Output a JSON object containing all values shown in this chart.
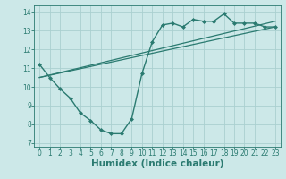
{
  "xlabel": "Humidex (Indice chaleur)",
  "ylabel": "",
  "background_color": "#cce8e8",
  "grid_color": "#aad0d0",
  "line_color": "#2a7a70",
  "xlim": [
    -0.5,
    23.5
  ],
  "ylim": [
    6.8,
    14.35
  ],
  "yticks": [
    7,
    8,
    9,
    10,
    11,
    12,
    13,
    14
  ],
  "xticks": [
    0,
    1,
    2,
    3,
    4,
    5,
    6,
    7,
    8,
    9,
    10,
    11,
    12,
    13,
    14,
    15,
    16,
    17,
    18,
    19,
    20,
    21,
    22,
    23
  ],
  "curve1_x": [
    0,
    1,
    2,
    3,
    4,
    5,
    6,
    7,
    8,
    9,
    10,
    11,
    12,
    13,
    14,
    15,
    16,
    17,
    18,
    19,
    20,
    21,
    22,
    23
  ],
  "curve1_y": [
    11.2,
    10.5,
    9.9,
    9.4,
    8.6,
    8.2,
    7.7,
    7.5,
    7.5,
    8.3,
    10.7,
    12.4,
    13.3,
    13.4,
    13.2,
    13.6,
    13.5,
    13.5,
    13.9,
    13.4,
    13.4,
    13.4,
    13.2,
    13.2
  ],
  "line1_x": [
    0,
    23
  ],
  "line1_y": [
    10.5,
    13.2
  ],
  "line2_x": [
    0,
    23
  ],
  "line2_y": [
    10.5,
    13.5
  ],
  "fontsize_ticks": 5.5,
  "fontsize_label": 7.5
}
